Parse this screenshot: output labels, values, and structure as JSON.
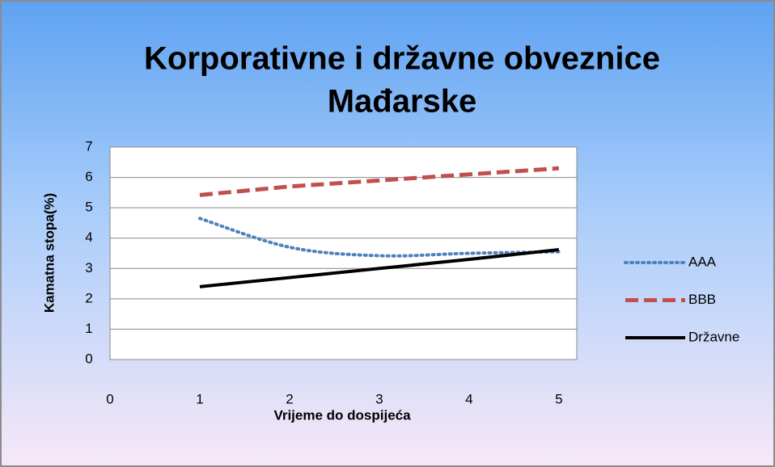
{
  "chart_data": {
    "type": "line",
    "title": [
      "Korporativne i državne obveznice",
      "Mađarske"
    ],
    "x_label": "Vrijeme do dospijeća",
    "y_label": "Kamatna stopa(%)",
    "x": [
      1,
      2,
      3,
      4,
      5
    ],
    "series": [
      {
        "name": "AAA",
        "color": "#4f81bd",
        "line_style": "dotted",
        "smooth": true,
        "values": [
          4.65,
          3.7,
          3.42,
          3.5,
          3.55
        ]
      },
      {
        "name": "BBB",
        "color": "#c0504d",
        "line_style": "dashed",
        "smooth": false,
        "values": [
          5.42,
          5.7,
          5.9,
          6.1,
          6.3
        ]
      },
      {
        "name": "Državne",
        "color": "#000000",
        "line_style": "solid",
        "smooth": false,
        "values": [
          2.4,
          2.7,
          3.0,
          3.3,
          3.62
        ]
      }
    ],
    "xlim": [
      0,
      5.2
    ],
    "xticks": [
      0,
      1,
      2,
      3,
      4,
      5
    ],
    "ylim": [
      0,
      7
    ],
    "yticks": [
      0,
      1,
      2,
      3,
      4,
      5,
      6,
      7
    ],
    "grid": true,
    "legend": "right"
  }
}
